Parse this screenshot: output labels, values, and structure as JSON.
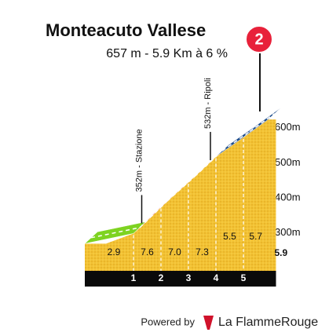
{
  "chart_data": {
    "type": "profile",
    "title": "Monteacuto Vallese",
    "subtitle": "657 m - 5.9 Km à 6 %",
    "badge": "2",
    "x": [
      0,
      1,
      2,
      3,
      4,
      5,
      5.9
    ],
    "elevations": [
      303,
      332,
      408,
      478,
      551,
      606,
      657
    ],
    "gradients": [
      2.9,
      7.6,
      7.0,
      7.3,
      5.5,
      5.7
    ],
    "gradient_labels": [
      "2.9",
      "7.6",
      "7.0",
      "7.3",
      "5.5",
      "5.7"
    ],
    "segment_colors": [
      "#7ed321",
      "#e8213a",
      "#e8213a",
      "#e8213a",
      "#1f4e8c",
      "#1f4e8c"
    ],
    "ylim": [
      250,
      700
    ],
    "yticks": [
      {
        "value": 300,
        "label": "300m"
      },
      {
        "value": 400,
        "label": "400m"
      },
      {
        "value": 500,
        "label": "500m"
      },
      {
        "value": 600,
        "label": "600m"
      }
    ],
    "annotations": [
      {
        "text": "352m - Stazione",
        "x": 1.3,
        "value": 352
      },
      {
        "text": "532m - Ripoli",
        "x": 3.8,
        "value": 532
      }
    ],
    "footer": {
      "powered": "Powered by",
      "brand": "La FlammeRouge"
    }
  }
}
